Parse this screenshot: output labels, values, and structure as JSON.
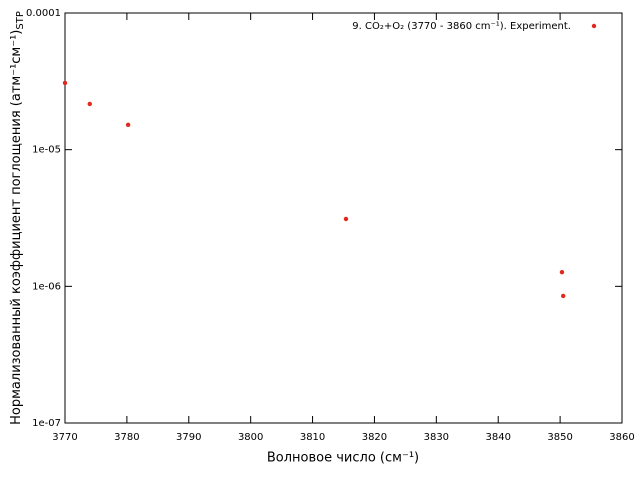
{
  "chart_data": {
    "type": "scatter",
    "xlabel": "Волновое число (см⁻¹)",
    "ylabel": "Нормализованный коэффициент поглощения (атм⁻¹см⁻¹)",
    "ylabel_subscript": "STP",
    "series": [
      {
        "name": "9. CO₂+O₂ (3770 - 3860 cm⁻¹). Experiment.",
        "color": "#e0281e",
        "x": [
          3770,
          3774,
          3780.2,
          3815.4,
          3850.3,
          3850.5
        ],
        "values": [
          3.08e-05,
          2.16e-05,
          1.52e-05,
          3.11e-06,
          1.27e-06,
          8.5e-07
        ]
      }
    ],
    "xlim": [
      3770,
      3860
    ],
    "xticks": [
      3770,
      3780,
      3790,
      3800,
      3810,
      3820,
      3830,
      3840,
      3850,
      3860
    ],
    "ylim": [
      1e-07,
      0.0001
    ],
    "ylog": true,
    "yticks": [
      {
        "value": 1e-07,
        "label": "1e-07"
      },
      {
        "value": 1e-06,
        "label": "1e-06"
      },
      {
        "value": 1e-05,
        "label": "1e-05"
      },
      {
        "value": 0.0001,
        "label": "0.0001"
      }
    ],
    "grid": false,
    "legend": "top-right"
  }
}
